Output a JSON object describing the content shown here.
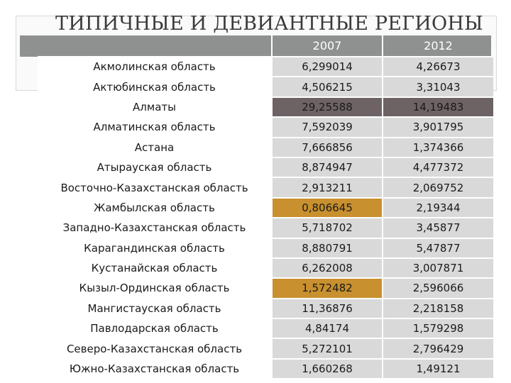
{
  "title": "ТИПИЧНЫЕ И ДЕВИАНТНЫЕ РЕГИОНЫ",
  "colors": {
    "header_band": "#8f9090",
    "cell": "#d9d9d9",
    "highlight_dark": "#6e6364",
    "highlight_gold": "#c8902e"
  },
  "table": {
    "headers": [
      "",
      "2007",
      "2012"
    ],
    "rows": [
      {
        "name": "Акмолинская область",
        "v2007": "6,299014",
        "v2012": "4,26673"
      },
      {
        "name": "Актюбинская область",
        "v2007": "4,506215",
        "v2012": "3,31043"
      },
      {
        "name": "Алматы",
        "v2007": "29,25588",
        "v2012": "14,19483"
      },
      {
        "name": "Алматинская область",
        "v2007": "7,592039",
        "v2012": "3,901795"
      },
      {
        "name": "Астана",
        "v2007": "7,666856",
        "v2012": "1,374366"
      },
      {
        "name": "Атырауская область",
        "v2007": "8,874947",
        "v2012": "4,477372"
      },
      {
        "name": "Восточно-Казахстанская область",
        "v2007": "2,913211",
        "v2012": "2,069752"
      },
      {
        "name": "Жамбылская область",
        "v2007": "0,806645",
        "v2012": "2,19344"
      },
      {
        "name": "Западно-Казахстанская область",
        "v2007": "5,718702",
        "v2012": "3,45877"
      },
      {
        "name": "Карагандинская область",
        "v2007": "8,880791",
        "v2012": "5,47877"
      },
      {
        "name": "Кустанайская область",
        "v2007": "6,262008",
        "v2012": "3,007871"
      },
      {
        "name": "Кызыл-Ординская область",
        "v2007": "1,572482",
        "v2012": "2,596066"
      },
      {
        "name": "Мангистауская область",
        "v2007": "11,36876",
        "v2012": "2,218158"
      },
      {
        "name": "Павлодарская область",
        "v2007": "4,84174",
        "v2012": "1,579298"
      },
      {
        "name": "Северо-Казахстанская область",
        "v2007": "5,272101",
        "v2012": "2,796429"
      },
      {
        "name": "Южно-Казахстанская область",
        "v2007": "1,660268",
        "v2012": "1,49121"
      }
    ]
  }
}
